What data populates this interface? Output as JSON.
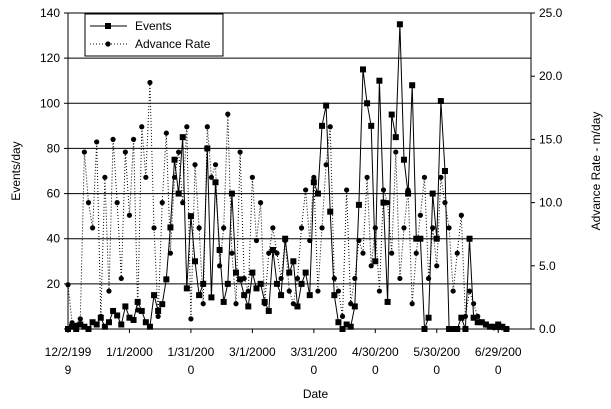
{
  "chart_data": {
    "type": "line",
    "xlabel": "Date",
    "ylabel_left": "Events/day",
    "ylabel_right": "Advance Rate - m/day",
    "x_tick_labels": [
      [
        "12/2/199",
        "9"
      ],
      [
        "1/1/2000",
        ""
      ],
      [
        "1/31/200",
        "0"
      ],
      [
        "3/1/2000",
        ""
      ],
      [
        "3/31/200",
        "0"
      ],
      [
        "4/30/200",
        "0"
      ],
      [
        "5/30/200",
        "0"
      ],
      [
        "6/29/200",
        "0"
      ]
    ],
    "x_tick_dates": [
      "1999-12-02",
      "2000-01-01",
      "2000-01-31",
      "2000-03-01",
      "2000-03-31",
      "2000-04-30",
      "2000-05-30",
      "2000-06-29"
    ],
    "xlim": [
      "1999-12-02",
      "2000-07-15"
    ],
    "ylim_left": [
      0,
      140
    ],
    "ylim_right": [
      0,
      25
    ],
    "yticks_left": [
      "",
      "20",
      "40",
      "60",
      "80",
      "100",
      "120",
      "140"
    ],
    "yticks_right": [
      "0.0",
      "5.0",
      "10.0",
      "15.0",
      "20.0",
      "25.0"
    ],
    "gridlines": "horizontal",
    "legend_position": "top-left",
    "series": [
      {
        "name": "Events",
        "axis": "left",
        "marker": "square",
        "line": "solid",
        "x": [
          "1999-12-02",
          "1999-12-04",
          "1999-12-06",
          "1999-12-08",
          "1999-12-10",
          "1999-12-12",
          "1999-12-14",
          "1999-12-16",
          "1999-12-18",
          "1999-12-20",
          "1999-12-22",
          "1999-12-24",
          "1999-12-26",
          "1999-12-28",
          "1999-12-30",
          "2000-01-01",
          "2000-01-03",
          "2000-01-05",
          "2000-01-07",
          "2000-01-09",
          "2000-01-11",
          "2000-01-13",
          "2000-01-15",
          "2000-01-17",
          "2000-01-19",
          "2000-01-21",
          "2000-01-23",
          "2000-01-25",
          "2000-01-27",
          "2000-01-29",
          "2000-01-31",
          "2000-02-02",
          "2000-02-04",
          "2000-02-06",
          "2000-02-08",
          "2000-02-10",
          "2000-02-12",
          "2000-02-14",
          "2000-02-16",
          "2000-02-18",
          "2000-02-20",
          "2000-02-22",
          "2000-02-24",
          "2000-02-26",
          "2000-02-28",
          "2000-03-01",
          "2000-03-03",
          "2000-03-05",
          "2000-03-07",
          "2000-03-09",
          "2000-03-11",
          "2000-03-13",
          "2000-03-15",
          "2000-03-17",
          "2000-03-19",
          "2000-03-21",
          "2000-03-23",
          "2000-03-25",
          "2000-03-27",
          "2000-03-29",
          "2000-03-31",
          "2000-04-02",
          "2000-04-04",
          "2000-04-06",
          "2000-04-08",
          "2000-04-10",
          "2000-04-12",
          "2000-04-14",
          "2000-04-16",
          "2000-04-18",
          "2000-04-20",
          "2000-04-22",
          "2000-04-24",
          "2000-04-26",
          "2000-04-28",
          "2000-04-30",
          "2000-05-02",
          "2000-05-04",
          "2000-05-06",
          "2000-05-08",
          "2000-05-10",
          "2000-05-12",
          "2000-05-14",
          "2000-05-16",
          "2000-05-18",
          "2000-05-20",
          "2000-05-22",
          "2000-05-24",
          "2000-05-26",
          "2000-05-28",
          "2000-05-30",
          "2000-06-01",
          "2000-06-03",
          "2000-06-05",
          "2000-06-07",
          "2000-06-09",
          "2000-06-11",
          "2000-06-13",
          "2000-06-15",
          "2000-06-17",
          "2000-06-19",
          "2000-06-21",
          "2000-06-23",
          "2000-06-25",
          "2000-06-27",
          "2000-06-29",
          "2000-07-01",
          "2000-07-03"
        ],
        "values": [
          0,
          1,
          0,
          2,
          1,
          0,
          3,
          2,
          5,
          1,
          3,
          8,
          6,
          2,
          10,
          5,
          4,
          12,
          8,
          3,
          1,
          15,
          8,
          11,
          22,
          45,
          75,
          60,
          85,
          18,
          50,
          30,
          15,
          20,
          80,
          14,
          65,
          35,
          12,
          20,
          60,
          25,
          22,
          15,
          10,
          25,
          18,
          20,
          12,
          8,
          35,
          20,
          15,
          40,
          25,
          30,
          10,
          20,
          25,
          15,
          65,
          60,
          90,
          99,
          52,
          15,
          3,
          0,
          2,
          1,
          10,
          55,
          115,
          100,
          90,
          30,
          110,
          56,
          12,
          95,
          85,
          135,
          75,
          60,
          108,
          40,
          40,
          0,
          5,
          60,
          40,
          101,
          70,
          0,
          0,
          0,
          5,
          0,
          40,
          5,
          3,
          3,
          2,
          1,
          1,
          2,
          1,
          0
        ]
      },
      {
        "name": "Advance Rate",
        "axis": "right",
        "marker": "circle",
        "line": "dotted",
        "x": [
          "1999-12-02",
          "1999-12-04",
          "1999-12-06",
          "1999-12-08",
          "1999-12-10",
          "1999-12-12",
          "1999-12-14",
          "1999-12-16",
          "1999-12-18",
          "1999-12-20",
          "1999-12-22",
          "1999-12-24",
          "1999-12-26",
          "1999-12-28",
          "1999-12-30",
          "2000-01-01",
          "2000-01-03",
          "2000-01-05",
          "2000-01-07",
          "2000-01-09",
          "2000-01-11",
          "2000-01-13",
          "2000-01-15",
          "2000-01-17",
          "2000-01-19",
          "2000-01-21",
          "2000-01-23",
          "2000-01-25",
          "2000-01-27",
          "2000-01-29",
          "2000-01-31",
          "2000-02-02",
          "2000-02-04",
          "2000-02-06",
          "2000-02-08",
          "2000-02-10",
          "2000-02-12",
          "2000-02-14",
          "2000-02-16",
          "2000-02-18",
          "2000-02-20",
          "2000-02-22",
          "2000-02-24",
          "2000-02-26",
          "2000-02-28",
          "2000-03-01",
          "2000-03-03",
          "2000-03-05",
          "2000-03-07",
          "2000-03-09",
          "2000-03-11",
          "2000-03-13",
          "2000-03-15",
          "2000-03-17",
          "2000-03-19",
          "2000-03-21",
          "2000-03-23",
          "2000-03-25",
          "2000-03-27",
          "2000-03-29",
          "2000-03-31",
          "2000-04-02",
          "2000-04-04",
          "2000-04-06",
          "2000-04-08",
          "2000-04-10",
          "2000-04-12",
          "2000-04-14",
          "2000-04-16",
          "2000-04-18",
          "2000-04-20",
          "2000-04-22",
          "2000-04-24",
          "2000-04-26",
          "2000-04-28",
          "2000-04-30",
          "2000-05-02",
          "2000-05-04",
          "2000-05-06",
          "2000-05-08",
          "2000-05-10",
          "2000-05-12",
          "2000-05-14",
          "2000-05-16",
          "2000-05-18",
          "2000-05-20",
          "2000-05-22",
          "2000-05-24",
          "2000-05-26",
          "2000-05-28",
          "2000-05-30",
          "2000-06-01",
          "2000-06-03",
          "2000-06-05",
          "2000-06-07",
          "2000-06-09",
          "2000-06-11",
          "2000-06-13",
          "2000-06-15",
          "2000-06-17",
          "2000-06-19",
          "2000-06-21",
          "2000-06-23",
          "2000-06-25",
          "2000-06-27",
          "2000-06-29",
          "2000-07-01",
          "2000-07-03"
        ],
        "values": [
          3.5,
          0.5,
          0.3,
          0.8,
          14,
          10,
          8,
          14.8,
          1,
          12,
          3,
          15,
          10,
          4,
          14,
          9,
          15,
          1.5,
          16,
          12,
          19.5,
          8,
          1,
          10,
          15.5,
          6,
          12,
          14,
          10,
          16,
          0.8,
          13,
          8,
          2,
          16,
          12,
          13,
          5,
          8,
          17,
          6,
          2,
          14,
          4,
          3,
          12,
          7,
          10,
          2,
          6,
          8,
          6,
          4,
          7,
          3,
          2,
          4,
          8,
          11,
          7,
          12,
          3,
          8,
          13,
          16,
          4,
          3,
          1,
          11,
          2,
          4,
          7,
          6,
          12,
          5,
          8,
          3,
          11,
          10,
          6,
          14,
          4,
          8,
          11,
          2,
          6,
          9,
          12,
          4,
          8,
          5,
          12,
          10,
          8,
          3,
          6,
          9,
          1,
          3,
          2,
          1,
          0.5,
          0.3,
          0.2,
          0.1,
          0.1,
          0.1,
          0
        ]
      }
    ]
  }
}
